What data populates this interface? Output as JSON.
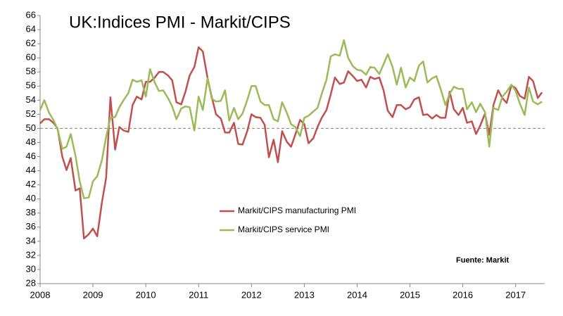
{
  "chart_data": {
    "type": "line",
    "title": "UK:Indices PMI - Markit/CIPS",
    "annotation": "Fuente: Markit",
    "x": [
      2008,
      2008.08,
      2008.17,
      2008.25,
      2008.33,
      2008.42,
      2008.5,
      2008.58,
      2008.67,
      2008.75,
      2008.83,
      2008.92,
      2009,
      2009.08,
      2009.17,
      2009.25,
      2009.33,
      2009.42,
      2009.5,
      2009.58,
      2009.67,
      2009.75,
      2009.83,
      2009.92,
      2010,
      2010.08,
      2010.17,
      2010.25,
      2010.33,
      2010.42,
      2010.5,
      2010.58,
      2010.67,
      2010.75,
      2010.83,
      2010.92,
      2011,
      2011.08,
      2011.17,
      2011.25,
      2011.33,
      2011.42,
      2011.5,
      2011.58,
      2011.67,
      2011.75,
      2011.83,
      2011.92,
      2012,
      2012.08,
      2012.17,
      2012.25,
      2012.33,
      2012.42,
      2012.5,
      2012.58,
      2012.67,
      2012.75,
      2012.83,
      2012.92,
      2013,
      2013.08,
      2013.17,
      2013.25,
      2013.33,
      2013.42,
      2013.5,
      2013.58,
      2013.67,
      2013.75,
      2013.83,
      2013.92,
      2014,
      2014.08,
      2014.17,
      2014.25,
      2014.33,
      2014.42,
      2014.5,
      2014.58,
      2014.67,
      2014.75,
      2014.83,
      2014.92,
      2015,
      2015.08,
      2015.17,
      2015.25,
      2015.33,
      2015.42,
      2015.5,
      2015.58,
      2015.67,
      2015.75,
      2015.83,
      2015.92,
      2016,
      2016.08,
      2016.17,
      2016.25,
      2016.33,
      2016.42,
      2016.5,
      2016.58,
      2016.67,
      2016.75,
      2016.83,
      2016.92,
      2017,
      2017.08,
      2017.17,
      2017.25,
      2017.33,
      2017.42,
      2017.5
    ],
    "series": [
      {
        "name": "Markit/CIPS manufacturing PMI",
        "color": "#c0504d",
        "values": [
          50.7,
          51.3,
          51.3,
          50.8,
          50.0,
          46.0,
          44.1,
          45.8,
          41.2,
          41.5,
          34.4,
          35.0,
          35.8,
          34.7,
          39.5,
          43.0,
          54.4,
          47.0,
          50.2,
          49.7,
          49.5,
          53.3,
          54.5,
          54.1,
          56.6,
          56.6,
          57.2,
          58.0,
          58.0,
          57.5,
          56.8,
          53.7,
          53.4,
          55.2,
          57.5,
          58.7,
          61.5,
          60.9,
          57.1,
          54.4,
          52.0,
          51.4,
          49.4,
          49.4,
          50.8,
          47.8,
          47.7,
          49.6,
          52.0,
          51.6,
          51.5,
          50.5,
          45.9,
          48.4,
          45.2,
          49.6,
          48.1,
          47.4,
          49.1,
          51.2,
          50.6,
          47.9,
          48.6,
          50.2,
          51.5,
          52.6,
          54.8,
          57.2,
          56.3,
          56.5,
          58.1,
          57.4,
          56.7,
          56.9,
          55.8,
          57.3,
          57.0,
          57.2,
          55.4,
          52.5,
          51.6,
          53.3,
          53.3,
          52.7,
          53.0,
          54.1,
          54.4,
          51.9,
          52.0,
          51.4,
          51.9,
          51.5,
          51.5,
          55.2,
          52.7,
          51.9,
          52.9,
          50.8,
          51.0,
          49.2,
          50.4,
          52.1,
          49.1,
          53.3,
          55.4,
          54.3,
          53.6,
          56.1,
          55.7,
          54.6,
          54.2,
          57.3,
          56.7,
          54.3,
          55.1
        ]
      },
      {
        "name": "Markit/CIPS service PMI",
        "color": "#9bbb59",
        "values": [
          52.6,
          54.0,
          52.2,
          51.2,
          49.9,
          47.1,
          47.4,
          49.2,
          46.1,
          42.5,
          40.1,
          40.2,
          42.5,
          43.2,
          45.5,
          48.8,
          51.5,
          51.6,
          53.0,
          54.0,
          55.0,
          56.9,
          56.6,
          56.8,
          54.5,
          58.4,
          56.5,
          55.3,
          55.4,
          54.3,
          53.1,
          51.3,
          52.8,
          53.1,
          53.0,
          49.7,
          54.5,
          52.6,
          57.1,
          54.2,
          53.8,
          53.9,
          55.4,
          51.1,
          52.9,
          51.3,
          52.1,
          54.0,
          56.0,
          56.0,
          53.8,
          53.3,
          53.3,
          51.3,
          51.0,
          53.7,
          52.2,
          50.6,
          50.2,
          48.9,
          51.5,
          51.8,
          52.4,
          52.9,
          54.9,
          56.9,
          60.2,
          60.5,
          60.3,
          62.5,
          60.0,
          58.8,
          58.3,
          58.2,
          57.6,
          58.7,
          58.6,
          57.7,
          59.1,
          60.5,
          58.7,
          56.2,
          58.6,
          55.8,
          57.2,
          56.7,
          58.9,
          59.5,
          56.5,
          57.1,
          57.4,
          55.6,
          53.3,
          54.9,
          55.9,
          55.6,
          55.6,
          52.7,
          53.7,
          52.3,
          53.5,
          52.3,
          47.4,
          52.9,
          52.6,
          54.5,
          55.2,
          56.2,
          55.3,
          53.5,
          51.9,
          55.8,
          53.8,
          53.4,
          53.8
        ]
      }
    ],
    "xlim": [
      2008,
      2017.55
    ],
    "xticks": [
      2008,
      2009,
      2010,
      2011,
      2012,
      2013,
      2014,
      2015,
      2016,
      2017
    ],
    "ylim": [
      28,
      66
    ],
    "yticks": [
      28,
      30,
      32,
      34,
      36,
      38,
      40,
      42,
      44,
      46,
      48,
      50,
      52,
      54,
      56,
      58,
      60,
      62,
      64,
      66
    ],
    "reference_line": 50,
    "grid": false
  }
}
